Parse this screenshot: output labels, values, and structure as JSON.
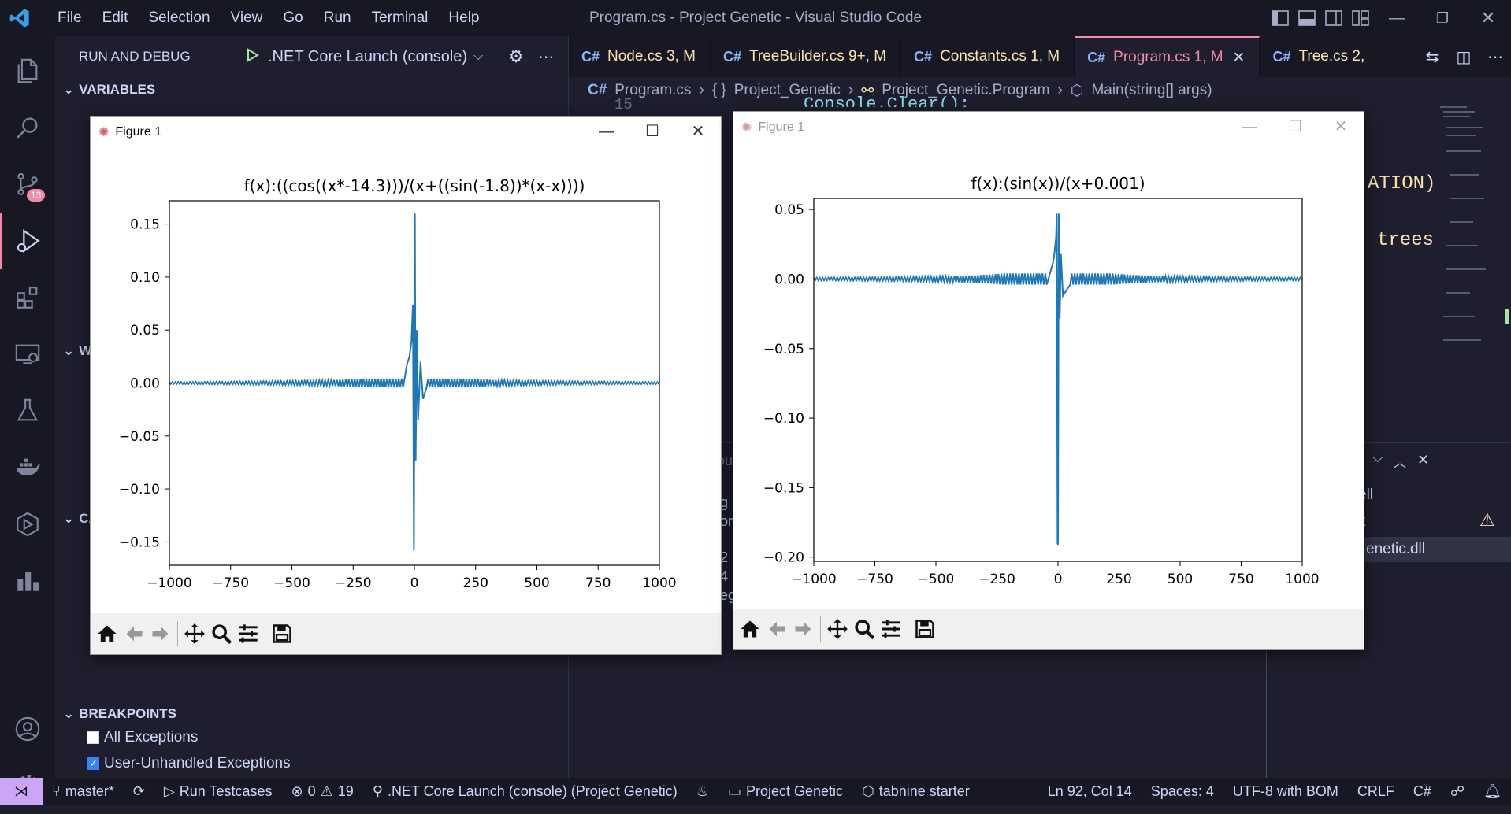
{
  "titlebar": {
    "menu": [
      "File",
      "Edit",
      "Selection",
      "View",
      "Go",
      "Run",
      "Terminal",
      "Help"
    ],
    "title": "Program.cs - Project Genetic - Visual Studio Code"
  },
  "activity": {
    "scm_badge": "13"
  },
  "runbar": {
    "label": "RUN AND DEBUG",
    "config": ".NET Core Launch (console)"
  },
  "sidebar": {
    "variables": "VARIABLES",
    "watch": "W",
    "callstack": "CA",
    "breakpoints": "BREAKPOINTS",
    "bp_items": [
      {
        "label": "All Exceptions",
        "checked": false
      },
      {
        "label": "User-Unhandled Exceptions",
        "checked": true
      }
    ]
  },
  "tabs": [
    {
      "icon": "C#",
      "name": "Node.cs",
      "status": "3, M"
    },
    {
      "icon": "C#",
      "name": "TreeBuilder.cs",
      "status": "9+, M"
    },
    {
      "icon": "C#",
      "name": "Constants.cs",
      "status": "1, M"
    },
    {
      "icon": "C#",
      "name": "Program.cs",
      "status": "1, M",
      "active": true
    },
    {
      "icon": "C#",
      "name": "Tree.cs",
      "status": "2,"
    }
  ],
  "breadcrumb": {
    "file_icon": "C#",
    "file": "Program.cs",
    "namespace_icon": "{ }",
    "namespace": "Project_Genetic",
    "class": "Project_Genetic.Program",
    "method": "Main(string[] args)"
  },
  "editor_fragments": {
    "line_number": "15",
    "code_top": "Console.Clear();",
    "code_right1": "ATION)",
    "code_right2": "trees"
  },
  "panel_fragments": {
    "p1": "ou",
    "p2": "g",
    "p3": "on",
    "p4": "2",
    "p5": "4",
    "p6": "eg",
    "r1": "ell",
    "r2": "k",
    "r3": "enetic.dll"
  },
  "figure1": {
    "title": "Figure 1",
    "chart_data": {
      "type": "line",
      "title": "f(x):((cos((x*-14.3)))/(x+((sin(-1.8))*(x-x))))",
      "xlim": [
        -1000,
        1000
      ],
      "ylim": [
        -0.172,
        0.172
      ],
      "xticks": [
        "−1000",
        "−750",
        "−500",
        "−250",
        "0",
        "250",
        "500",
        "750",
        "1000"
      ],
      "xtick_values": [
        -1000,
        -750,
        -500,
        -250,
        0,
        250,
        500,
        750,
        1000
      ],
      "yticks": [
        "−0.15",
        "−0.10",
        "−0.05",
        "0.00",
        "0.05",
        "0.10",
        "0.15"
      ],
      "ytick_values": [
        -0.15,
        -0.1,
        -0.05,
        0.0,
        0.05,
        0.1,
        0.15
      ],
      "series": [
        {
          "color": "#1f77b4",
          "peaks": [
            [
              -30,
              0.018
            ],
            [
              -20,
              0.025
            ],
            [
              -12,
              0.04
            ],
            [
              -6,
              0.074
            ],
            [
              -2,
              -0.158
            ],
            [
              2,
              0.16
            ],
            [
              5,
              -0.073
            ],
            [
              10,
              0.05
            ],
            [
              15,
              -0.035
            ],
            [
              25,
              0.02
            ],
            [
              35,
              -0.015
            ]
          ]
        }
      ],
      "grid": false
    }
  },
  "figure2": {
    "title": "Figure 1",
    "chart_data": {
      "type": "line",
      "title": "f(x):(sin(x))/(x+0.001)",
      "xlim": [
        -1000,
        1000
      ],
      "ylim": [
        -0.203,
        0.058
      ],
      "xticks": [
        "−1000",
        "−750",
        "−500",
        "−250",
        "0",
        "250",
        "500",
        "750",
        "1000"
      ],
      "xtick_values": [
        -1000,
        -750,
        -500,
        -250,
        0,
        250,
        500,
        750,
        1000
      ],
      "yticks": [
        "−0.20",
        "−0.15",
        "−0.10",
        "−0.05",
        "0.00",
        "0.05"
      ],
      "ytick_values": [
        -0.2,
        -0.15,
        -0.1,
        -0.05,
        0.0,
        0.05
      ],
      "series": [
        {
          "color": "#1f77b4",
          "peaks": [
            [
              -20,
              0.012
            ],
            [
              -15,
              0.018
            ],
            [
              -8,
              0.03
            ],
            [
              -5,
              0.047
            ],
            [
              -2,
              -0.19
            ],
            [
              0,
              -0.191
            ],
            [
              3,
              0.047
            ],
            [
              7,
              -0.028
            ],
            [
              12,
              0.018
            ],
            [
              20,
              -0.012
            ]
          ]
        }
      ],
      "grid": false
    }
  },
  "statusbar": {
    "branch": "master*",
    "run_testcases": "Run Testcases",
    "errors": "0",
    "warnings": "19",
    "debug_config": ".NET Core Launch (console) (Project Genetic)",
    "project": "Project Genetic",
    "tabnine": "tabnine starter",
    "position": "Ln 92, Col 14",
    "spaces": "Spaces: 4",
    "encoding": "UTF-8 with BOM",
    "eol": "CRLF",
    "language": "C#"
  },
  "colors": {
    "accent": "#f38ba8",
    "tab_text": "#f9e2af",
    "cs_icon": "#89b4fa",
    "plot_line": "#1f77b4"
  }
}
